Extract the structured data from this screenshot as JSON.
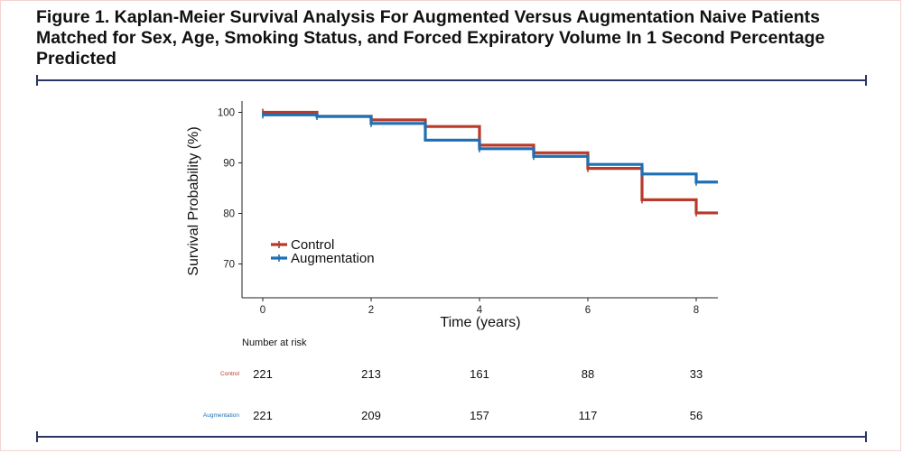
{
  "figure": {
    "title": "Figure 1. Kaplan-Meier Survival Analysis For Augmented Versus Augmentation Naive Patients Matched for Sex, Age, Smoking Status, and Forced Expiratory Volume In 1 Second Percentage Predicted"
  },
  "chart_data": {
    "type": "line",
    "subtype": "kaplan-meier-step",
    "xlabel": "Time (years)",
    "ylabel": "Survival Probability (%)",
    "xlim": [
      -0.4,
      8.4
    ],
    "ylim": [
      63.5,
      102
    ],
    "x_ticks": [
      0,
      2,
      4,
      6,
      8
    ],
    "y_ticks": [
      70,
      80,
      90,
      100
    ],
    "grid": false,
    "legend_position": "left-middle",
    "series": [
      {
        "name": "Control",
        "color": "#b83a2b",
        "steps": [
          [
            0,
            100
          ],
          [
            1,
            99.2
          ],
          [
            2,
            98.5
          ],
          [
            3,
            97.2
          ],
          [
            4,
            93.5
          ],
          [
            5,
            92.0
          ],
          [
            6,
            88.9
          ],
          [
            7,
            82.7
          ],
          [
            8,
            80.1
          ],
          [
            8.4,
            80.1
          ]
        ],
        "censor_marks": [
          [
            0,
            100
          ],
          [
            2,
            98.5
          ],
          [
            4,
            93.5
          ],
          [
            6,
            88.9
          ],
          [
            7,
            82.7
          ],
          [
            8,
            80.1
          ]
        ]
      },
      {
        "name": "Augmentation",
        "color": "#1f6fb4",
        "steps": [
          [
            0,
            99.5
          ],
          [
            1,
            99.2
          ],
          [
            2,
            97.8
          ],
          [
            3,
            94.5
          ],
          [
            4,
            92.8
          ],
          [
            5,
            91.3
          ],
          [
            6,
            89.7
          ],
          [
            7,
            87.8
          ],
          [
            8,
            86.2
          ],
          [
            8.4,
            86.2
          ]
        ],
        "censor_marks": [
          [
            0,
            99.5
          ],
          [
            1,
            99.2
          ],
          [
            2,
            97.8
          ],
          [
            4,
            92.8
          ],
          [
            5,
            91.3
          ],
          [
            7,
            87.8
          ],
          [
            8,
            86.2
          ]
        ]
      }
    ],
    "risk_table": {
      "title": "Number at risk",
      "times": [
        0,
        2,
        4,
        6,
        8
      ],
      "rows": [
        {
          "label": "Control",
          "color": "#b83a2b",
          "values": [
            221,
            213,
            161,
            88,
            33
          ]
        },
        {
          "label": "Augmentation",
          "color": "#1f6fb4",
          "values": [
            221,
            209,
            157,
            117,
            56
          ]
        }
      ]
    }
  }
}
